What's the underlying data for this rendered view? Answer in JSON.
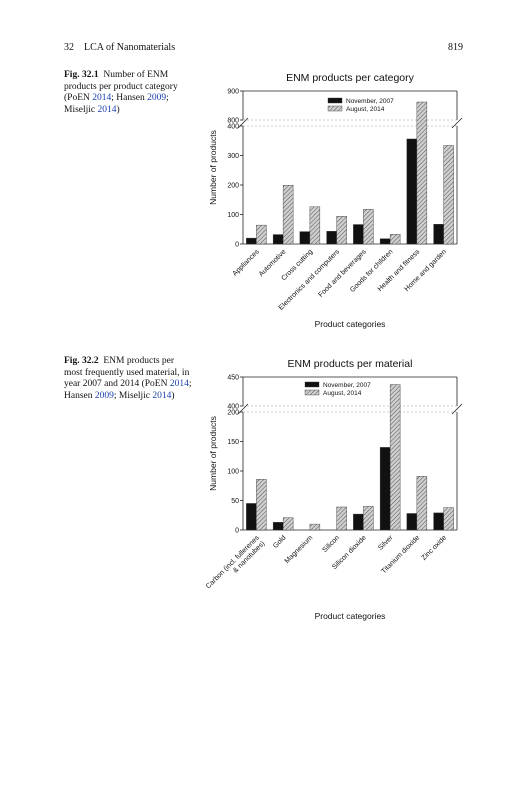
{
  "header": {
    "left": "32 LCA of Nanomaterials",
    "right": "819"
  },
  "figures": [
    {
      "label": "Fig. 32.1",
      "caption_parts": [
        {
          "t": "Number of ENM products per product category (PoEN ",
          "c": false
        },
        {
          "t": "2014",
          "c": true
        },
        {
          "t": "; Hansen ",
          "c": false
        },
        {
          "t": "2009",
          "c": true
        },
        {
          "t": "; Miseljic ",
          "c": false
        },
        {
          "t": "2014",
          "c": true
        },
        {
          "t": ")",
          "c": false
        }
      ]
    },
    {
      "label": "Fig. 32.2",
      "caption_parts": [
        {
          "t": "ENM products per most frequently used material, in year 2007 and 2014 (PoEN ",
          "c": false
        },
        {
          "t": "2014",
          "c": true
        },
        {
          "t": "; Hansen ",
          "c": false
        },
        {
          "t": "2009",
          "c": true
        },
        {
          "t": "; Miseljic ",
          "c": false
        },
        {
          "t": "2014",
          "c": true
        },
        {
          "t": ")",
          "c": false
        }
      ]
    }
  ],
  "chart_data": [
    {
      "type": "bar",
      "title": "ENM products per category",
      "xlabel": "Product categories",
      "ylabel": "Number of products",
      "categories": [
        "Appliances",
        "Automotive",
        "Cross cutting",
        "Electronics and computers",
        "Food and beverages",
        "Goods for children",
        "Health and fitness",
        "Home and garden"
      ],
      "series": [
        {
          "name": "November, 2007",
          "values": [
            20,
            32,
            42,
            43,
            66,
            18,
            356,
            67
          ],
          "color": "#111111"
        },
        {
          "name": "August, 2014",
          "values": [
            64,
            199,
            126,
            94,
            118,
            33,
            862,
            334
          ],
          "color": "#bdbdbd"
        }
      ],
      "broken_axis": {
        "lower": [
          0,
          400
        ],
        "upper": [
          800,
          900
        ]
      },
      "yticks": [
        0,
        100,
        200,
        300,
        400,
        800,
        900
      ],
      "legend_position": "top-right"
    },
    {
      "type": "bar",
      "title": "ENM products per material",
      "xlabel": "Product categories",
      "ylabel": "Number of products",
      "categories": [
        "Carbon (incl. fullerenes & nanotubes)",
        "Gold",
        "Magnesium",
        "Silicon",
        "Silicon dioxide",
        "Silver",
        "Titanium dioxide",
        "Zinc oxide"
      ],
      "series": [
        {
          "name": "November, 2007",
          "values": [
            45,
            13,
            0,
            0,
            27,
            140,
            28,
            29
          ],
          "color": "#111111"
        },
        {
          "name": "August, 2014",
          "values": [
            86,
            21,
            10,
            39,
            40,
            437,
            91,
            38
          ],
          "color": "#bdbdbd"
        }
      ],
      "broken_axis": {
        "lower": [
          0,
          200
        ],
        "upper": [
          400,
          450
        ]
      },
      "yticks": [
        0,
        50,
        100,
        150,
        200,
        400,
        450
      ],
      "legend_position": "top-right"
    }
  ]
}
